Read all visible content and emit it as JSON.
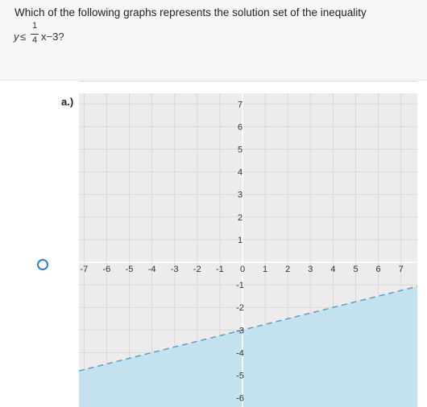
{
  "question": {
    "text": "Which of the following graphs represents the solution set of the inequality",
    "math": {
      "lhs": "y",
      "relation": "≤",
      "numerator": "1",
      "denominator": "4",
      "rest": "x−3?"
    }
  },
  "option": {
    "label": "a.)",
    "selected": false
  },
  "colors": {
    "shade": "#c4e1ee",
    "boundary": "#4aa3d3",
    "grid": "#d9d9d9",
    "background": "#ececec",
    "radio": "#2d7fd3"
  },
  "chart_data": {
    "type": "area",
    "title": "",
    "xlabel": "",
    "ylabel": "",
    "xlim": [
      -7,
      7
    ],
    "ylim": [
      -6,
      7
    ],
    "x_ticks": [
      -7,
      -6,
      -5,
      -4,
      -3,
      -2,
      -1,
      0,
      1,
      2,
      3,
      4,
      5,
      6,
      7
    ],
    "y_ticks": [
      -6,
      -5,
      -4,
      -3,
      -2,
      -1,
      1,
      2,
      3,
      4,
      5,
      6,
      7
    ],
    "grid": true,
    "boundary_line": {
      "slope": 0.25,
      "intercept": -3,
      "style": "dashed"
    },
    "shaded_region": "below"
  }
}
